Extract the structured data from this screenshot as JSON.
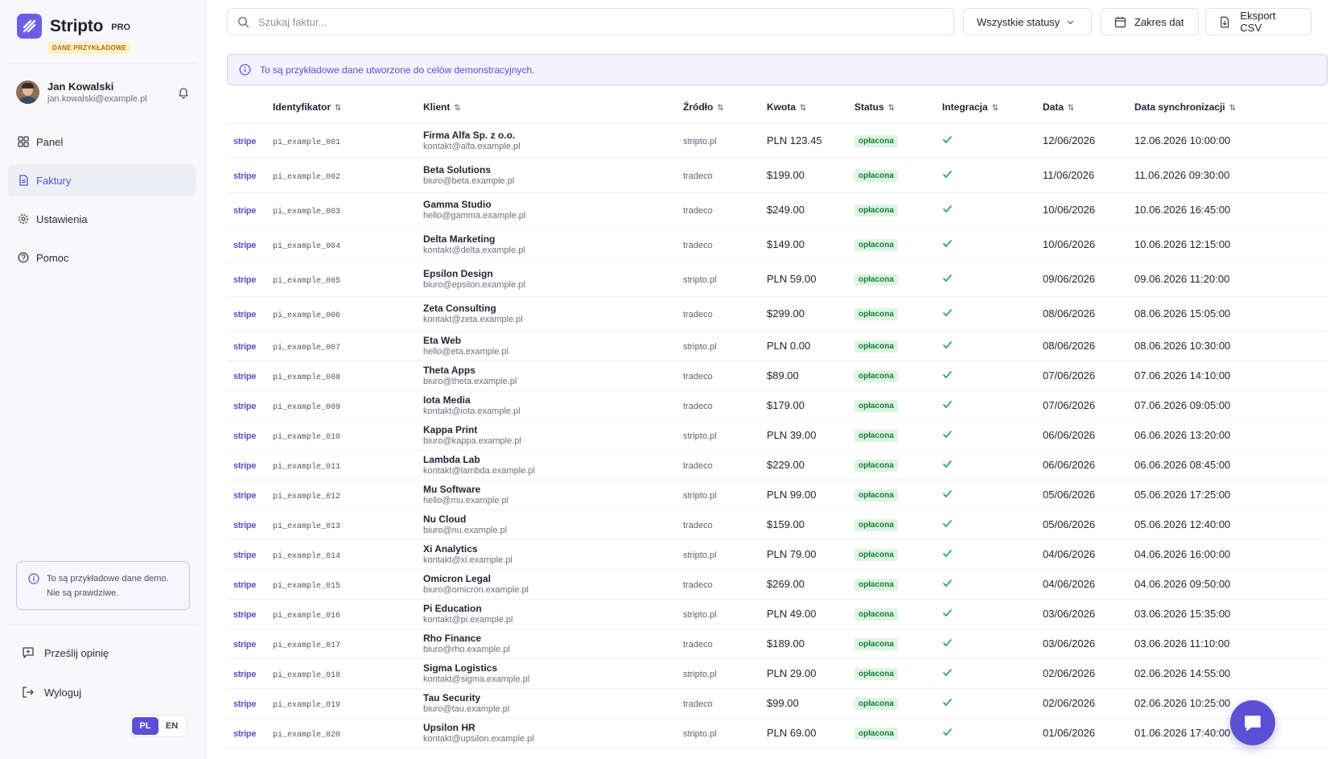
{
  "brand": {
    "name": "Stripto",
    "plan": "PRO",
    "badge": "DANE PRZYKŁADOWE"
  },
  "user": {
    "name": "Jan Kowalski",
    "email": "jan.kowalski@example.pl"
  },
  "nav": [
    {
      "label": "Panel",
      "icon": "grid-icon",
      "active": false
    },
    {
      "label": "Faktury",
      "icon": "document-icon",
      "active": true
    },
    {
      "label": "Ustawienia",
      "icon": "gear-icon",
      "active": false
    },
    {
      "label": "Pomoc",
      "icon": "help-circle-icon",
      "active": false
    }
  ],
  "sidebar_note": "To są przykładowe dane demo. Nie są prawdziwe.",
  "feedback_label": "Prześlij opinię",
  "logout_label": "Wyloguj",
  "languages": {
    "pl": "PL",
    "en": "EN",
    "active": "PL"
  },
  "toolbar": {
    "search_placeholder": "Szukaj faktur...",
    "status_filter": "Wszystkie statusy",
    "date_range": "Zakres dat",
    "export": "Eksport CSV"
  },
  "info_banner": "To są przykładowe dane utworzone do celów demonstracyjnych.",
  "table": {
    "headers": [
      "Identyfikator",
      "Klient",
      "Źródło",
      "Kwota",
      "Status",
      "Integracja",
      "Data",
      "Data synchronizacji"
    ],
    "provider": "stripe",
    "rows": [
      {
        "id": "pi_example_001",
        "client": "Firma Alfa Sp. z o.o.",
        "email": "kontakt@alfa.example.pl",
        "source": "stripto.pl",
        "amount": "PLN 123.45",
        "status": "opłacona",
        "date": "12/06/2026",
        "sync": "12.06.2026 10:00:00"
      },
      {
        "id": "pi_example_002",
        "client": "Beta Solutions",
        "email": "biuro@beta.example.pl",
        "source": "tradeco",
        "amount": "$199.00",
        "status": "opłacona",
        "date": "11/06/2026",
        "sync": "11.06.2026 09:30:00"
      },
      {
        "id": "pi_example_003",
        "client": "Gamma Studio",
        "email": "hello@gamma.example.pl",
        "source": "tradeco",
        "amount": "$249.00",
        "status": "opłacona",
        "date": "10/06/2026",
        "sync": "10.06.2026 16:45:00"
      },
      {
        "id": "pi_example_004",
        "client": "Delta Marketing",
        "email": "kontakt@delta.example.pl",
        "source": "tradeco",
        "amount": "$149.00",
        "status": "opłacona",
        "date": "10/06/2026",
        "sync": "10.06.2026 12:15:00"
      },
      {
        "id": "pi_example_005",
        "client": "Epsilon Design",
        "email": "biuro@epsilon.example.pl",
        "source": "stripto.pl",
        "amount": "PLN 59.00",
        "status": "opłacona",
        "date": "09/06/2026",
        "sync": "09.06.2026 11:20:00"
      },
      {
        "id": "pi_example_006",
        "client": "Zeta Consulting",
        "email": "kontakt@zeta.example.pl",
        "source": "tradeco",
        "amount": "$299.00",
        "status": "opłacona",
        "date": "08/06/2026",
        "sync": "08.06.2026 15:05:00"
      },
      {
        "id": "pi_example_007",
        "client": "Eta Web",
        "email": "hello@eta.example.pl",
        "source": "stripto.pl",
        "amount": "PLN 0.00",
        "status": "opłacona",
        "date": "08/06/2026",
        "sync": "08.06.2026 10:30:00"
      },
      {
        "id": "pi_example_008",
        "client": "Theta Apps",
        "email": "biuro@theta.example.pl",
        "source": "tradeco",
        "amount": "$89.00",
        "status": "opłacona",
        "date": "07/06/2026",
        "sync": "07.06.2026 14:10:00"
      },
      {
        "id": "pi_example_009",
        "client": "Iota Media",
        "email": "kontakt@iota.example.pl",
        "source": "tradeco",
        "amount": "$179.00",
        "status": "opłacona",
        "date": "07/06/2026",
        "sync": "07.06.2026 09:05:00"
      },
      {
        "id": "pi_example_010",
        "client": "Kappa Print",
        "email": "biuro@kappa.example.pl",
        "source": "stripto.pl",
        "amount": "PLN 39.00",
        "status": "opłacona",
        "date": "06/06/2026",
        "sync": "06.06.2026 13:20:00"
      },
      {
        "id": "pi_example_011",
        "client": "Lambda Lab",
        "email": "kontakt@lambda.example.pl",
        "source": "tradeco",
        "amount": "$229.00",
        "status": "opłacona",
        "date": "06/06/2026",
        "sync": "06.06.2026 08:45:00"
      },
      {
        "id": "pi_example_012",
        "client": "Mu Software",
        "email": "hello@mu.example.pl",
        "source": "stripto.pl",
        "amount": "PLN 99.00",
        "status": "opłacona",
        "date": "05/06/2026",
        "sync": "05.06.2026 17:25:00"
      },
      {
        "id": "pi_example_013",
        "client": "Nu Cloud",
        "email": "biuro@nu.example.pl",
        "source": "tradeco",
        "amount": "$159.00",
        "status": "opłacona",
        "date": "05/06/2026",
        "sync": "05.06.2026 12:40:00"
      },
      {
        "id": "pi_example_014",
        "client": "Xi Analytics",
        "email": "kontakt@xi.example.pl",
        "source": "stripto.pl",
        "amount": "PLN 79.00",
        "status": "opłacona",
        "date": "04/06/2026",
        "sync": "04.06.2026 16:00:00"
      },
      {
        "id": "pi_example_015",
        "client": "Omicron Legal",
        "email": "biuro@omicron.example.pl",
        "source": "tradeco",
        "amount": "$269.00",
        "status": "opłacona",
        "date": "04/06/2026",
        "sync": "04.06.2026 09:50:00"
      },
      {
        "id": "pi_example_016",
        "client": "Pi Education",
        "email": "kontakt@pi.example.pl",
        "source": "stripto.pl",
        "amount": "PLN 49.00",
        "status": "opłacona",
        "date": "03/06/2026",
        "sync": "03.06.2026 15:35:00"
      },
      {
        "id": "pi_example_017",
        "client": "Rho Finance",
        "email": "biuro@rho.example.pl",
        "source": "tradeco",
        "amount": "$189.00",
        "status": "opłacona",
        "date": "03/06/2026",
        "sync": "03.06.2026 11:10:00"
      },
      {
        "id": "pi_example_018",
        "client": "Sigma Logistics",
        "email": "kontakt@sigma.example.pl",
        "source": "stripto.pl",
        "amount": "PLN 29.00",
        "status": "opłacona",
        "date": "02/06/2026",
        "sync": "02.06.2026 14:55:00"
      },
      {
        "id": "pi_example_019",
        "client": "Tau Security",
        "email": "biuro@tau.example.pl",
        "source": "tradeco",
        "amount": "$99.00",
        "status": "opłacona",
        "date": "02/06/2026",
        "sync": "02.06.2026 10:25:00"
      },
      {
        "id": "pi_example_020",
        "client": "Upsilon HR",
        "email": "kontakt@upsilon.example.pl",
        "source": "stripto.pl",
        "amount": "PLN 69.00",
        "status": "opłacona",
        "date": "01/06/2026",
        "sync": "01.06.2026 17:40:00"
      }
    ]
  },
  "colors": {
    "accent": "#5b4fd6",
    "badge_bg": "#dcf5e2",
    "badge_text": "#1b7d3a",
    "check": "#1f9d55"
  }
}
